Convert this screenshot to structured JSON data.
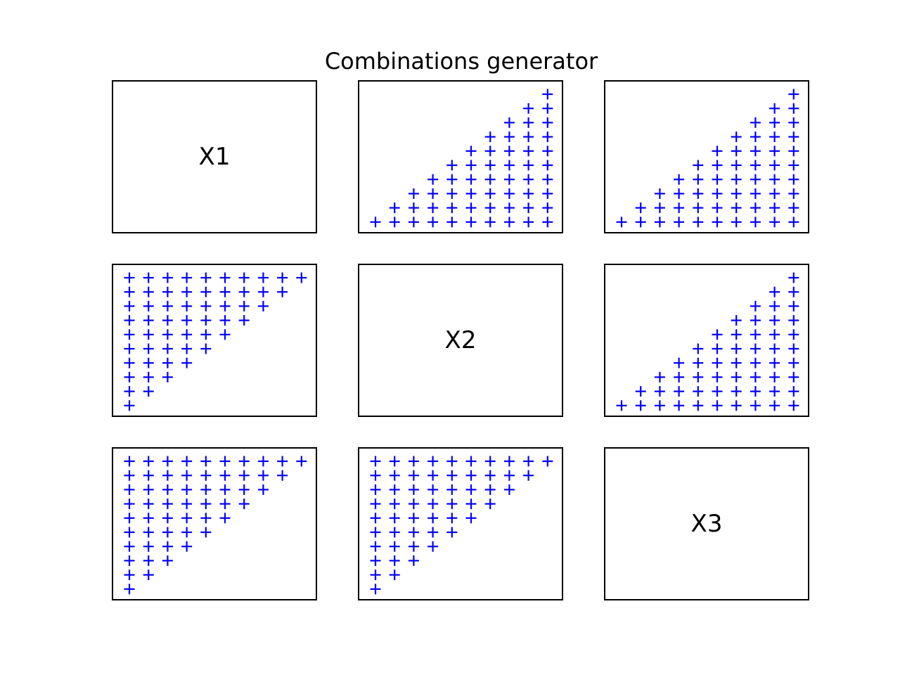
{
  "figure": {
    "title": "Combinations generator"
  },
  "chart_data": {
    "type": "scatter",
    "layout": "3x3 grid of panels",
    "marker": "+",
    "marker_color": "#0000ff",
    "variables": [
      "X1",
      "X2",
      "X3"
    ],
    "axes_ticks": false,
    "panels": [
      {
        "row": 0,
        "col": 0,
        "kind": "label",
        "label": "X1"
      },
      {
        "row": 0,
        "col": 1,
        "kind": "scatter",
        "n": 10,
        "triangle": "lower-right",
        "description": "x from 1 to 10, y from 1 to x"
      },
      {
        "row": 0,
        "col": 2,
        "kind": "scatter",
        "n": 10,
        "triangle": "lower-right",
        "description": "x from 1 to 10, y from 1 to x"
      },
      {
        "row": 1,
        "col": 0,
        "kind": "scatter",
        "n": 10,
        "triangle": "upper-left",
        "description": "y from 1 to 10, x from 1 to y"
      },
      {
        "row": 1,
        "col": 1,
        "kind": "label",
        "label": "X2"
      },
      {
        "row": 1,
        "col": 2,
        "kind": "scatter",
        "n": 10,
        "triangle": "lower-right",
        "description": "x from 1 to 10, y from 1 to x"
      },
      {
        "row": 2,
        "col": 0,
        "kind": "scatter",
        "n": 10,
        "triangle": "upper-left",
        "description": "y from 1 to 10, x from 1 to y"
      },
      {
        "row": 2,
        "col": 1,
        "kind": "scatter",
        "n": 10,
        "triangle": "upper-left",
        "description": "y from 1 to 10, x from 1 to y"
      },
      {
        "row": 2,
        "col": 2,
        "kind": "label",
        "label": "X3"
      }
    ]
  }
}
